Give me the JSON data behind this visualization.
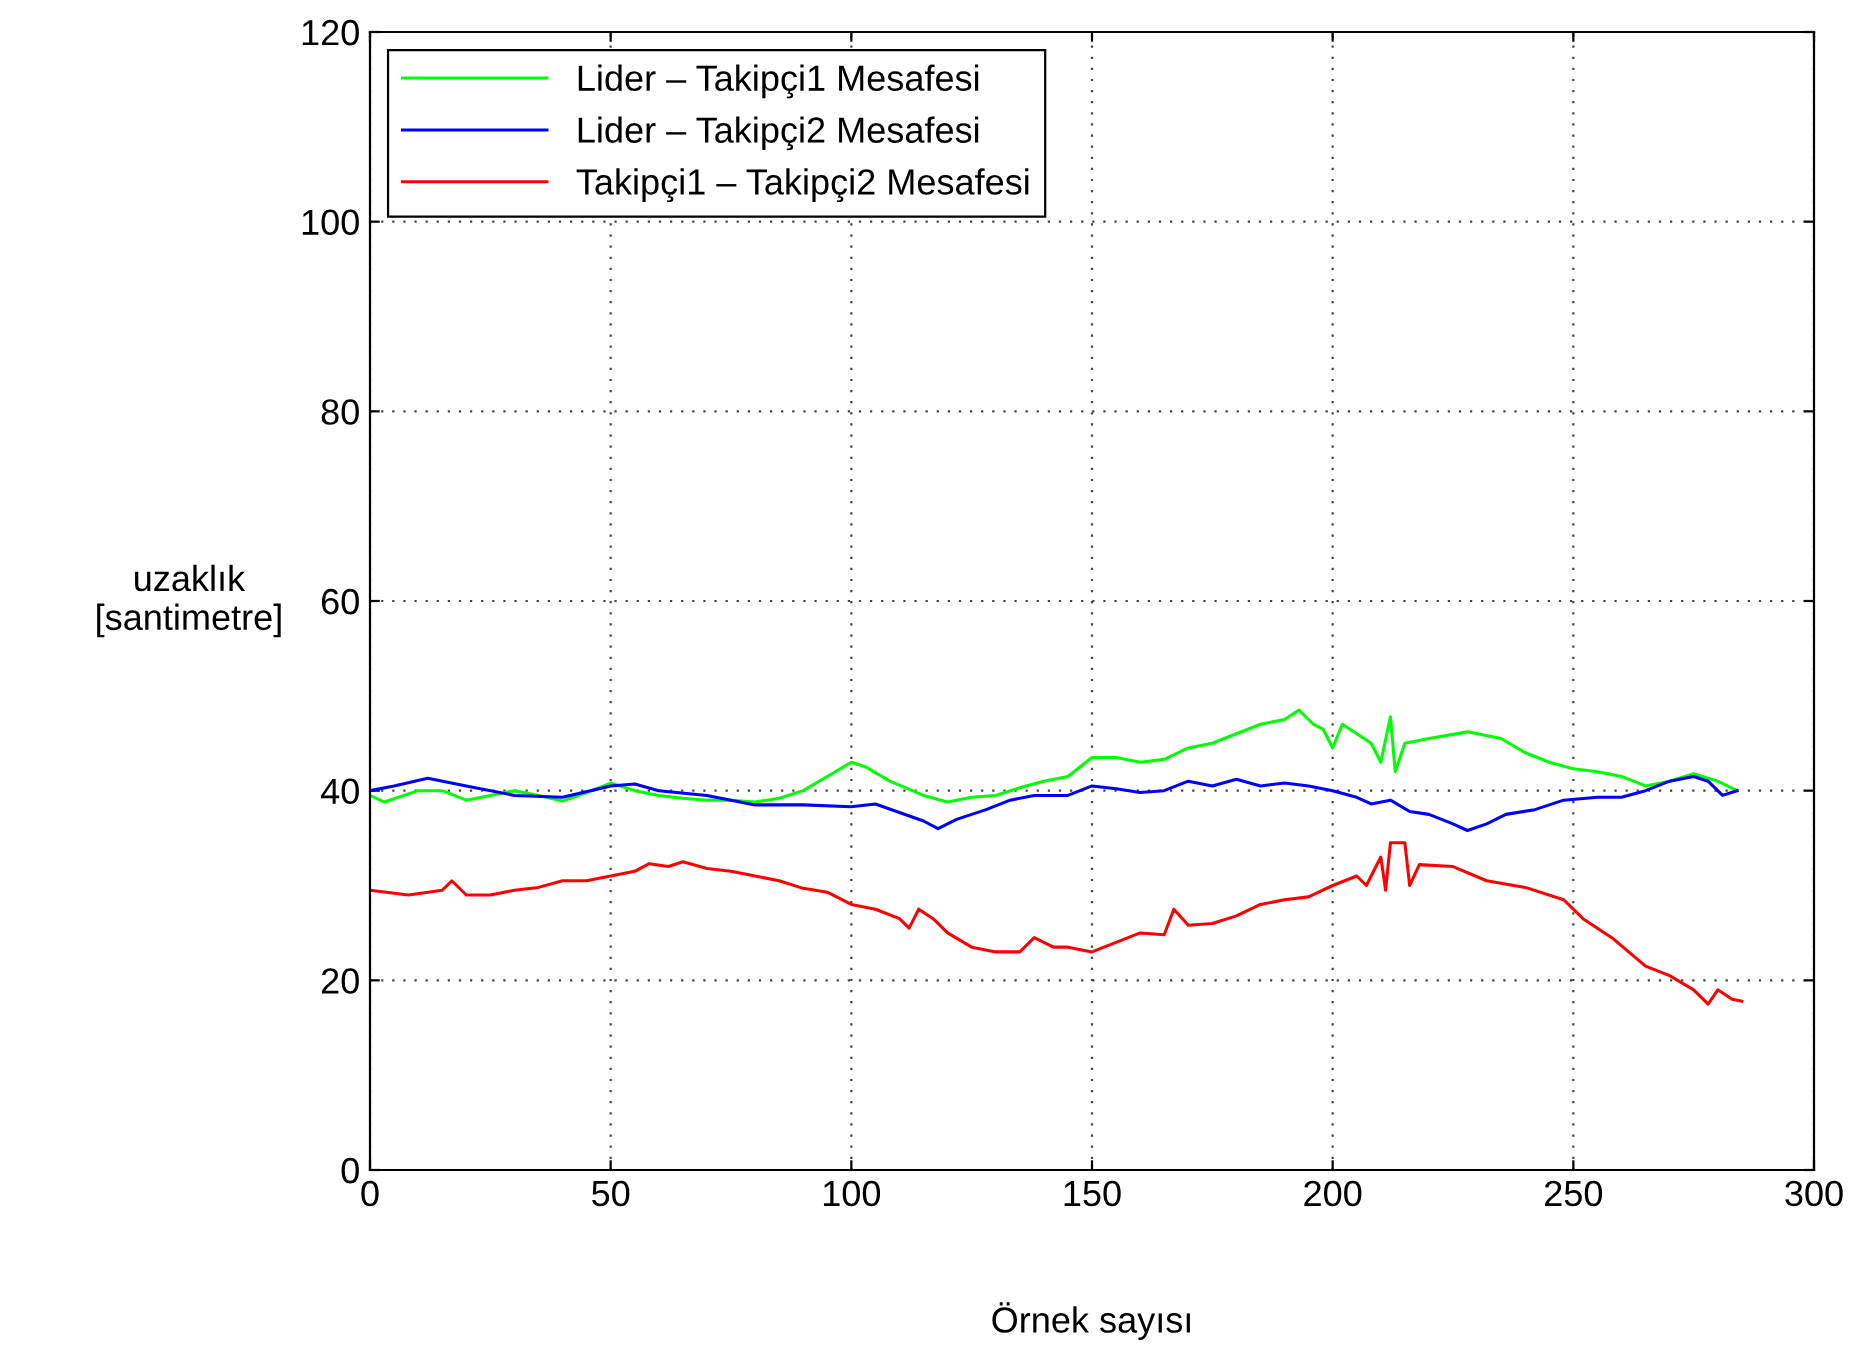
{
  "chart_data": {
    "type": "line",
    "xlabel": "Örnek sayısı",
    "ylabel": "uzaklık\n[santimetre]",
    "xlim": [
      0,
      300
    ],
    "xticks": [
      0,
      50,
      100,
      150,
      200,
      250,
      300
    ],
    "ylim": [
      0,
      120
    ],
    "yticks": [
      0,
      20,
      40,
      60,
      80,
      100,
      120
    ],
    "grid": true,
    "legend": "top left",
    "marker": "none",
    "line_style": "solid",
    "series": [
      {
        "name": "Lider – Takipçi1 Mesafesi",
        "color": "#00ff00",
        "x": [
          0,
          3,
          10,
          15,
          20,
          25,
          30,
          35,
          40,
          45,
          50,
          55,
          60,
          65,
          70,
          75,
          80,
          85,
          90,
          95,
          100,
          103,
          108,
          115,
          120,
          125,
          130,
          135,
          140,
          145,
          150,
          155,
          160,
          165,
          170,
          175,
          180,
          185,
          190,
          193,
          196,
          198,
          200,
          202,
          205,
          208,
          210,
          212,
          213,
          215,
          220,
          228,
          235,
          240,
          245,
          250,
          255,
          260,
          265,
          270,
          275,
          280,
          284
        ],
        "values": [
          39.5,
          38.8,
          40,
          40,
          39,
          39.5,
          40,
          39.5,
          38.9,
          39.8,
          40.8,
          40,
          39.5,
          39.2,
          39,
          39,
          38.8,
          39.2,
          40,
          41.5,
          43,
          42.5,
          41,
          39.5,
          38.8,
          39.3,
          39.5,
          40.3,
          41,
          41.5,
          43.5,
          43.5,
          43,
          43.3,
          44.5,
          45,
          46,
          47,
          47.5,
          48.5,
          47,
          46.5,
          44.5,
          47,
          46,
          45,
          43,
          47.8,
          42,
          45,
          45.5,
          46.2,
          45.5,
          44,
          43,
          42.3,
          42,
          41.5,
          40.5,
          41,
          41.8,
          41,
          40
        ]
      },
      {
        "name": "Lider – Takipçi2 Mesafesi",
        "color": "#0000ff",
        "x": [
          0,
          5,
          12,
          20,
          30,
          40,
          50,
          55,
          60,
          70,
          80,
          90,
          100,
          105,
          110,
          115,
          118,
          122,
          128,
          133,
          138,
          145,
          150,
          155,
          160,
          165,
          170,
          175,
          180,
          185,
          190,
          195,
          200,
          205,
          208,
          212,
          216,
          220,
          225,
          228,
          232,
          236,
          242,
          248,
          255,
          260,
          265,
          270,
          275,
          278,
          281,
          284
        ],
        "values": [
          40,
          40.5,
          41.3,
          40.5,
          39.5,
          39.3,
          40.5,
          40.7,
          40,
          39.5,
          38.5,
          38.5,
          38.3,
          38.6,
          37.7,
          36.8,
          36,
          37,
          38,
          39,
          39.5,
          39.5,
          40.5,
          40.2,
          39.8,
          40,
          41,
          40.5,
          41.2,
          40.5,
          40.8,
          40.5,
          40,
          39.3,
          38.6,
          39,
          37.8,
          37.5,
          36.5,
          35.8,
          36.5,
          37.5,
          38,
          39,
          39.3,
          39.3,
          40,
          41,
          41.5,
          41,
          39.5,
          40
        ]
      },
      {
        "name": "Takipçi1 – Takipçi2 Mesafesi",
        "color": "#ff0000",
        "x": [
          0,
          8,
          15,
          17,
          20,
          25,
          30,
          35,
          40,
          45,
          50,
          55,
          58,
          62,
          65,
          70,
          75,
          80,
          85,
          90,
          95,
          100,
          105,
          110,
          112,
          114,
          117,
          120,
          125,
          130,
          135,
          138,
          142,
          145,
          150,
          155,
          160,
          165,
          167,
          170,
          175,
          180,
          185,
          190,
          195,
          200,
          205,
          207,
          210,
          211,
          212,
          215,
          216,
          218,
          225,
          232,
          240,
          248,
          252,
          258,
          265,
          270,
          275,
          278,
          280,
          283,
          285
        ],
        "values": [
          29.5,
          29,
          29.5,
          30.5,
          29,
          29,
          29.5,
          29.8,
          30.5,
          30.5,
          31,
          31.5,
          32.3,
          32,
          32.5,
          31.8,
          31.5,
          31,
          30.5,
          29.7,
          29.3,
          28,
          27.5,
          26.5,
          25.5,
          27.5,
          26.5,
          25,
          23.5,
          23,
          23,
          24.5,
          23.5,
          23.5,
          23,
          24,
          25,
          24.8,
          27.5,
          25.8,
          26,
          26.8,
          28,
          28.5,
          28.8,
          30,
          31,
          30,
          33,
          29.5,
          34.5,
          34.5,
          30,
          32.2,
          32,
          30.5,
          29.8,
          28.5,
          26.5,
          24.5,
          21.5,
          20.5,
          19,
          17.5,
          19,
          18,
          17.8
        ]
      }
    ]
  }
}
